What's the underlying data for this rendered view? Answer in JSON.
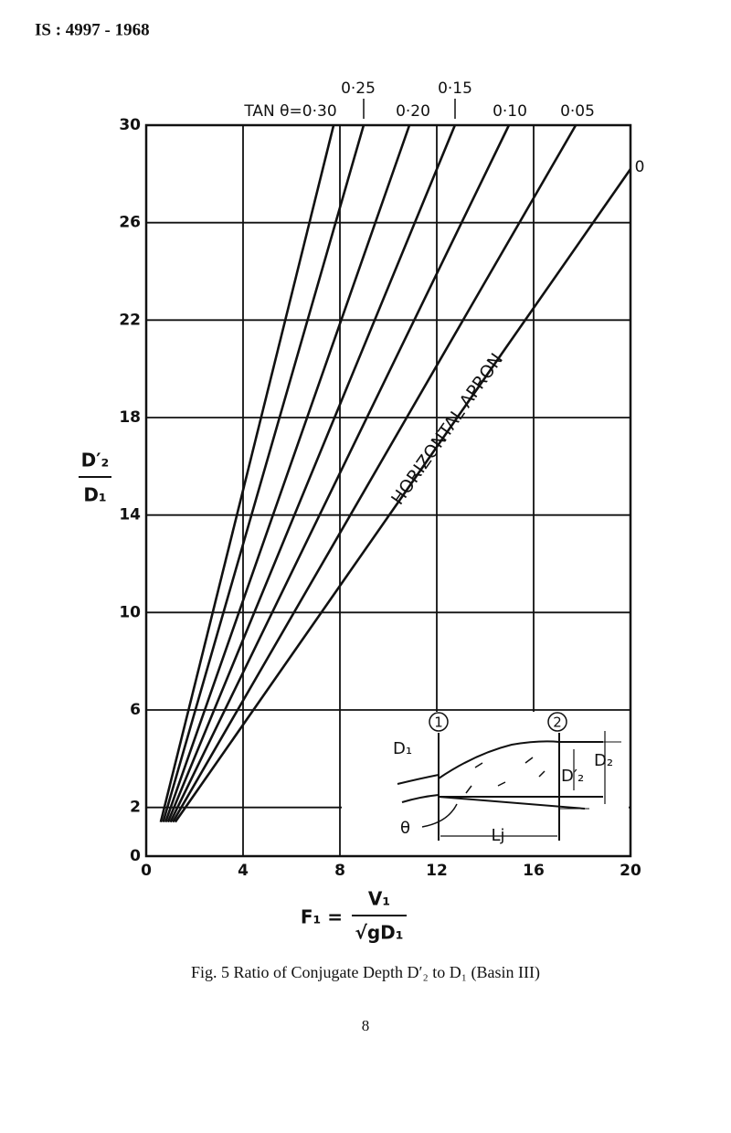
{
  "header": "IS : 4997 - 1968",
  "chart_data": {
    "type": "line",
    "series": [
      {
        "name": "TAN θ=0·30",
        "color": "#111111",
        "x": [
          0.6,
          7.74
        ],
        "values": [
          1.4,
          30
        ]
      },
      {
        "name": "0·25",
        "color": "#111111",
        "x": [
          0.7,
          8.98
        ],
        "values": [
          1.4,
          30
        ]
      },
      {
        "name": "0·20",
        "color": "#111111",
        "x": [
          0.8,
          10.87
        ],
        "values": [
          1.4,
          30
        ]
      },
      {
        "name": "0·15",
        "color": "#111111",
        "x": [
          0.9,
          12.75
        ],
        "values": [
          1.4,
          30
        ]
      },
      {
        "name": "0·10",
        "color": "#111111",
        "x": [
          1.0,
          14.98
        ],
        "values": [
          1.4,
          30
        ]
      },
      {
        "name": "0·05",
        "color": "#111111",
        "x": [
          1.1,
          17.74
        ],
        "values": [
          1.4,
          30
        ]
      },
      {
        "name": "0",
        "color": "#111111",
        "x": [
          1.2,
          20
        ],
        "values": [
          1.4,
          28.2
        ]
      }
    ],
    "xlim": [
      0,
      20
    ],
    "xticks": [
      0,
      4,
      8,
      12,
      16,
      20
    ],
    "ylim": [
      0,
      30
    ],
    "yticks": [
      0,
      2,
      6,
      10,
      14,
      18,
      22,
      26,
      30
    ],
    "grid": true,
    "annotation": "HORIZONTAL APRON",
    "y_label": {
      "numerator": "D′₂",
      "denominator": "D₁"
    },
    "x_label": {
      "lhs": "F₁ =",
      "numerator": "V₁",
      "denominator": "√gD₁"
    },
    "inset": {
      "section_1": "1",
      "section_2": "2",
      "d1": "D₁",
      "d2": "D₂",
      "d2_prime": "D′₂",
      "theta": "θ",
      "lj": "Lj"
    }
  },
  "caption": "Fig. 5  Ratio of Conjugate Depth D′₂ to D₁ (Basin III)",
  "page_number": "8"
}
